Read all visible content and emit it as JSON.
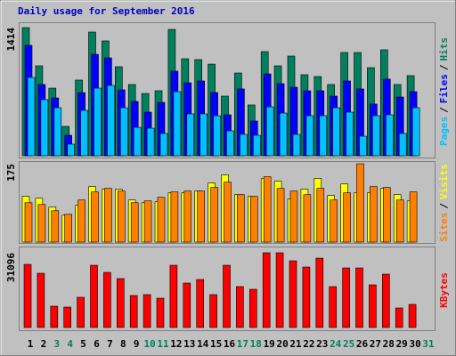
{
  "title": "Daily usage for September 2016",
  "legend_separator": "/",
  "chart_data": [
    {
      "type": "bar",
      "ylim": [
        0,
        1414
      ],
      "yticks": [
        1414
      ],
      "series": [
        {
          "name": "Hits",
          "color": "#00805c",
          "values": [
            1414,
            992,
            746,
            324,
            835,
            1365,
            1267,
            982,
            786,
            687,
            717,
            1394,
            1070,
            1061,
            1011,
            658,
            913,
            560,
            1149,
            992,
            1100,
            894,
            874,
            786,
            1139,
            1139,
            972,
            1169,
            786,
            884,
            null
          ]
        },
        {
          "name": "Files",
          "color": "#0000ff",
          "values": [
            1218,
            786,
            638,
            226,
            697,
            1119,
            1080,
            727,
            599,
            481,
            589,
            933,
            805,
            825,
            697,
            452,
            737,
            383,
            903,
            795,
            756,
            717,
            717,
            658,
            825,
            737,
            570,
            845,
            648,
            707,
            null
          ]
        },
        {
          "name": "Pages",
          "color": "#00c0ff",
          "values": [
            864,
            619,
            530,
            128,
            501,
            746,
            776,
            530,
            314,
            304,
            246,
            707,
            462,
            462,
            442,
            275,
            236,
            226,
            540,
            471,
            236,
            442,
            442,
            530,
            481,
            216,
            442,
            452,
            246,
            530,
            null
          ]
        }
      ]
    },
    {
      "type": "bar",
      "ylim": [
        0,
        175
      ],
      "yticks": [
        175
      ],
      "series": [
        {
          "name": "Visits",
          "color": "#ffff00",
          "values": [
            102,
            98,
            78,
            60,
            82,
            124,
            118,
            118,
            94,
            88,
            90,
            110,
            110,
            114,
            132,
            150,
            106,
            102,
            142,
            136,
            96,
            118,
            142,
            104,
            130,
            110,
            110,
            120,
            106,
            92,
            null
          ]
        },
        {
          "name": "Sites",
          "color": "#ff8000",
          "values": [
            88,
            84,
            70,
            62,
            94,
            112,
            120,
            114,
            88,
            92,
            100,
            112,
            114,
            114,
            122,
            134,
            106,
            102,
            146,
            120,
            114,
            106,
            120,
            94,
            110,
            175,
            124,
            122,
            94,
            112,
            null
          ]
        }
      ]
    },
    {
      "type": "bar",
      "ylim": [
        0,
        31096
      ],
      "yticks": [
        31096
      ],
      "categories": [
        "1",
        "2",
        "3",
        "4",
        "5",
        "6",
        "7",
        "8",
        "9",
        "10",
        "11",
        "12",
        "13",
        "14",
        "15",
        "16",
        "17",
        "18",
        "19",
        "20",
        "21",
        "22",
        "23",
        "24",
        "25",
        "26",
        "27",
        "28",
        "29",
        "30",
        "31"
      ],
      "category_colors": [
        "#000000",
        "#000000",
        "#00805c",
        "#00805c",
        "#000000",
        "#000000",
        "#000000",
        "#000000",
        "#000000",
        "#00805c",
        "#00805c",
        "#000000",
        "#000000",
        "#000000",
        "#000000",
        "#000000",
        "#00805c",
        "#00805c",
        "#000000",
        "#000000",
        "#000000",
        "#000000",
        "#000000",
        "#00805c",
        "#00805c",
        "#000000",
        "#000000",
        "#000000",
        "#000000",
        "#000000",
        "#00805c"
      ],
      "series": [
        {
          "name": "KBytes",
          "color": "#ff0000",
          "values": [
            26270,
            22570,
            8880,
            8510,
            12580,
            25900,
            22940,
            20350,
            13320,
            13690,
            12210,
            25900,
            18500,
            19980,
            13690,
            25900,
            17020,
            15910,
            31096,
            31096,
            27750,
            25160,
            28860,
            17020,
            24790,
            24790,
            17760,
            22200,
            8140,
            9620,
            null
          ]
        }
      ]
    }
  ]
}
